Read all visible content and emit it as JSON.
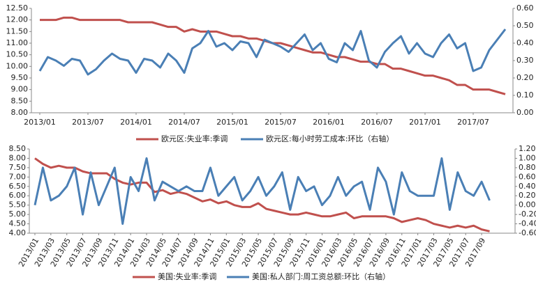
{
  "chart_data": [
    {
      "type": "line",
      "categories": [
        "2013/01",
        null,
        null,
        null,
        null,
        null,
        "2013/07",
        null,
        null,
        null,
        null,
        null,
        "2014/01",
        null,
        null,
        null,
        null,
        null,
        "2014/07",
        null,
        null,
        null,
        null,
        null,
        "2015/01",
        null,
        null,
        null,
        null,
        null,
        "2015/07",
        null,
        null,
        null,
        null,
        null,
        "2016/01",
        null,
        null,
        null,
        null,
        null,
        "2016/07",
        null,
        null,
        null,
        null,
        null,
        "2017/01",
        null,
        null,
        null,
        null,
        null,
        "2017/07",
        null,
        null,
        null,
        null
      ],
      "series": [
        {
          "name": "欧元区:失业率:季调",
          "color": "#c0504d",
          "axis": "y",
          "values": [
            12.0,
            12.0,
            12.0,
            12.1,
            12.1,
            12.0,
            12.0,
            12.0,
            12.0,
            12.0,
            12.0,
            11.9,
            11.9,
            11.9,
            11.9,
            11.8,
            11.7,
            11.7,
            11.5,
            11.6,
            11.5,
            11.5,
            11.5,
            11.4,
            11.3,
            11.3,
            11.2,
            11.2,
            11.1,
            11.0,
            11.0,
            10.9,
            10.8,
            10.7,
            10.6,
            10.6,
            10.5,
            10.4,
            10.4,
            10.3,
            10.2,
            10.2,
            10.1,
            10.1,
            9.9,
            9.9,
            9.8,
            9.7,
            9.6,
            9.6,
            9.5,
            9.4,
            9.2,
            9.2,
            9.0,
            9.0,
            9.0,
            8.9,
            8.8
          ]
        },
        {
          "name": "欧元区:每小时劳工成本:环比（右轴）",
          "color": "#4a7fb5",
          "axis": "y2",
          "values": [
            0.24,
            0.32,
            0.3,
            0.27,
            0.31,
            0.3,
            0.22,
            0.25,
            0.3,
            0.34,
            0.31,
            0.3,
            0.23,
            0.31,
            0.3,
            0.26,
            0.34,
            0.3,
            0.23,
            0.37,
            0.4,
            0.47,
            0.38,
            0.4,
            0.36,
            0.41,
            0.4,
            0.32,
            0.42,
            0.4,
            0.38,
            0.35,
            0.4,
            0.45,
            0.36,
            0.4,
            0.31,
            0.29,
            0.4,
            0.36,
            0.47,
            0.3,
            0.26,
            0.35,
            0.4,
            0.44,
            0.34,
            0.4,
            0.34,
            0.32,
            0.4,
            0.45,
            0.37,
            0.4,
            0.24,
            0.26,
            0.36,
            0.42,
            0.48
          ]
        }
      ],
      "ylim": [
        8.0,
        12.5
      ],
      "yticks": [
        {
          "value": 8.0,
          "label": "8.00"
        },
        {
          "value": 8.5,
          "label": "8.50"
        },
        {
          "value": 9.0,
          "label": "9.00"
        },
        {
          "value": 9.5,
          "label": "9.50"
        },
        {
          "value": 10.0,
          "label": "10.00"
        },
        {
          "value": 10.5,
          "label": "10.50"
        },
        {
          "value": 11.0,
          "label": "11.00"
        },
        {
          "value": 11.5,
          "label": "11.50"
        },
        {
          "value": 12.0,
          "label": "12.00"
        },
        {
          "value": 12.5,
          "label": "12.50"
        }
      ],
      "y2lim": [
        0.0,
        0.6
      ],
      "y2ticks": [
        {
          "value": 0.0,
          "label": "0.00"
        },
        {
          "value": 0.1,
          "label": "0.10"
        },
        {
          "value": 0.2,
          "label": "0.20"
        },
        {
          "value": 0.3,
          "label": "0.30"
        },
        {
          "value": 0.4,
          "label": "0.40"
        },
        {
          "value": 0.5,
          "label": "0.50"
        },
        {
          "value": 0.6,
          "label": "0.60"
        }
      ],
      "legend": "bottom"
    },
    {
      "type": "line",
      "categories": [
        "2013/01",
        null,
        "2013/03",
        null,
        "2013/05",
        null,
        "2013/07",
        null,
        "2013/09",
        null,
        "2013/11",
        null,
        "2014/01",
        null,
        "2014/03",
        null,
        "2014/05",
        null,
        "2014/07",
        null,
        "2014/09",
        null,
        "2014/11",
        null,
        "2015/01",
        null,
        "2015/03",
        null,
        "2015/05",
        null,
        "2015/07",
        null,
        "2015/09",
        null,
        "2015/11",
        null,
        "2016/01",
        null,
        "2016/03",
        null,
        "2016/05",
        null,
        "2016/07",
        null,
        "2016/09",
        null,
        "2016/11",
        null,
        "2017/01",
        null,
        "2017/03",
        null,
        "2017/05",
        null,
        "2017/07",
        null,
        "2017/09",
        null
      ],
      "series": [
        {
          "name": "美国:失业率:季调",
          "color": "#c0504d",
          "axis": "y",
          "values": [
            8.0,
            7.7,
            7.5,
            7.6,
            7.5,
            7.5,
            7.3,
            7.2,
            7.2,
            7.2,
            6.9,
            6.7,
            6.6,
            6.7,
            6.7,
            6.2,
            6.3,
            6.1,
            6.2,
            6.1,
            5.9,
            5.7,
            5.8,
            5.6,
            5.7,
            5.5,
            5.4,
            5.4,
            5.6,
            5.3,
            5.2,
            5.1,
            5.0,
            5.0,
            5.1,
            5.0,
            4.9,
            4.9,
            5.0,
            5.1,
            4.8,
            4.9,
            4.9,
            4.9,
            4.9,
            4.8,
            4.6,
            4.7,
            4.8,
            4.7,
            4.5,
            4.4,
            4.3,
            4.4,
            4.3,
            4.4,
            4.2,
            4.1
          ]
        },
        {
          "name": "美国:私人部门:周工资总额:环比（右轴）",
          "color": "#4a7fb5",
          "axis": "y2",
          "values": [
            0.0,
            0.8,
            0.1,
            0.2,
            0.4,
            0.8,
            -0.2,
            0.7,
            0.0,
            0.4,
            0.8,
            -0.4,
            0.6,
            0.3,
            1.0,
            0.1,
            0.5,
            0.4,
            0.3,
            0.4,
            0.3,
            0.3,
            0.8,
            0.2,
            0.4,
            0.6,
            0.1,
            0.3,
            0.6,
            0.2,
            0.4,
            0.7,
            -0.1,
            0.6,
            0.3,
            0.4,
            0.0,
            0.2,
            0.6,
            0.2,
            0.4,
            0.5,
            -0.1,
            0.8,
            0.5,
            -0.2,
            0.7,
            0.3,
            0.2,
            0.2,
            0.2,
            1.0,
            -0.1,
            0.7,
            0.3,
            0.2,
            0.5,
            0.1
          ]
        }
      ],
      "ylim": [
        4.0,
        8.5
      ],
      "yticks": [
        {
          "value": 4.0,
          "label": "4.00"
        },
        {
          "value": 4.5,
          "label": "4.50"
        },
        {
          "value": 5.0,
          "label": "5.00"
        },
        {
          "value": 5.5,
          "label": "5.50"
        },
        {
          "value": 6.0,
          "label": "6.00"
        },
        {
          "value": 6.5,
          "label": "6.50"
        },
        {
          "value": 7.0,
          "label": "7.00"
        },
        {
          "value": 7.5,
          "label": "7.50"
        },
        {
          "value": 8.0,
          "label": "8.00"
        },
        {
          "value": 8.5,
          "label": "8.50"
        }
      ],
      "y2lim": [
        -0.6,
        1.2
      ],
      "y2ticks": [
        {
          "value": -0.6,
          "label": "-0.60"
        },
        {
          "value": -0.4,
          "label": "-0.40"
        },
        {
          "value": -0.2,
          "label": "-0.20"
        },
        {
          "value": 0.0,
          "label": "0.00"
        },
        {
          "value": 0.2,
          "label": "0.20"
        },
        {
          "value": 0.4,
          "label": "0.40"
        },
        {
          "value": 0.6,
          "label": "0.60"
        },
        {
          "value": 0.8,
          "label": "0.80"
        },
        {
          "value": 1.0,
          "label": "1.00"
        },
        {
          "value": 1.2,
          "label": "1.20"
        }
      ],
      "legend": "bottom"
    }
  ]
}
